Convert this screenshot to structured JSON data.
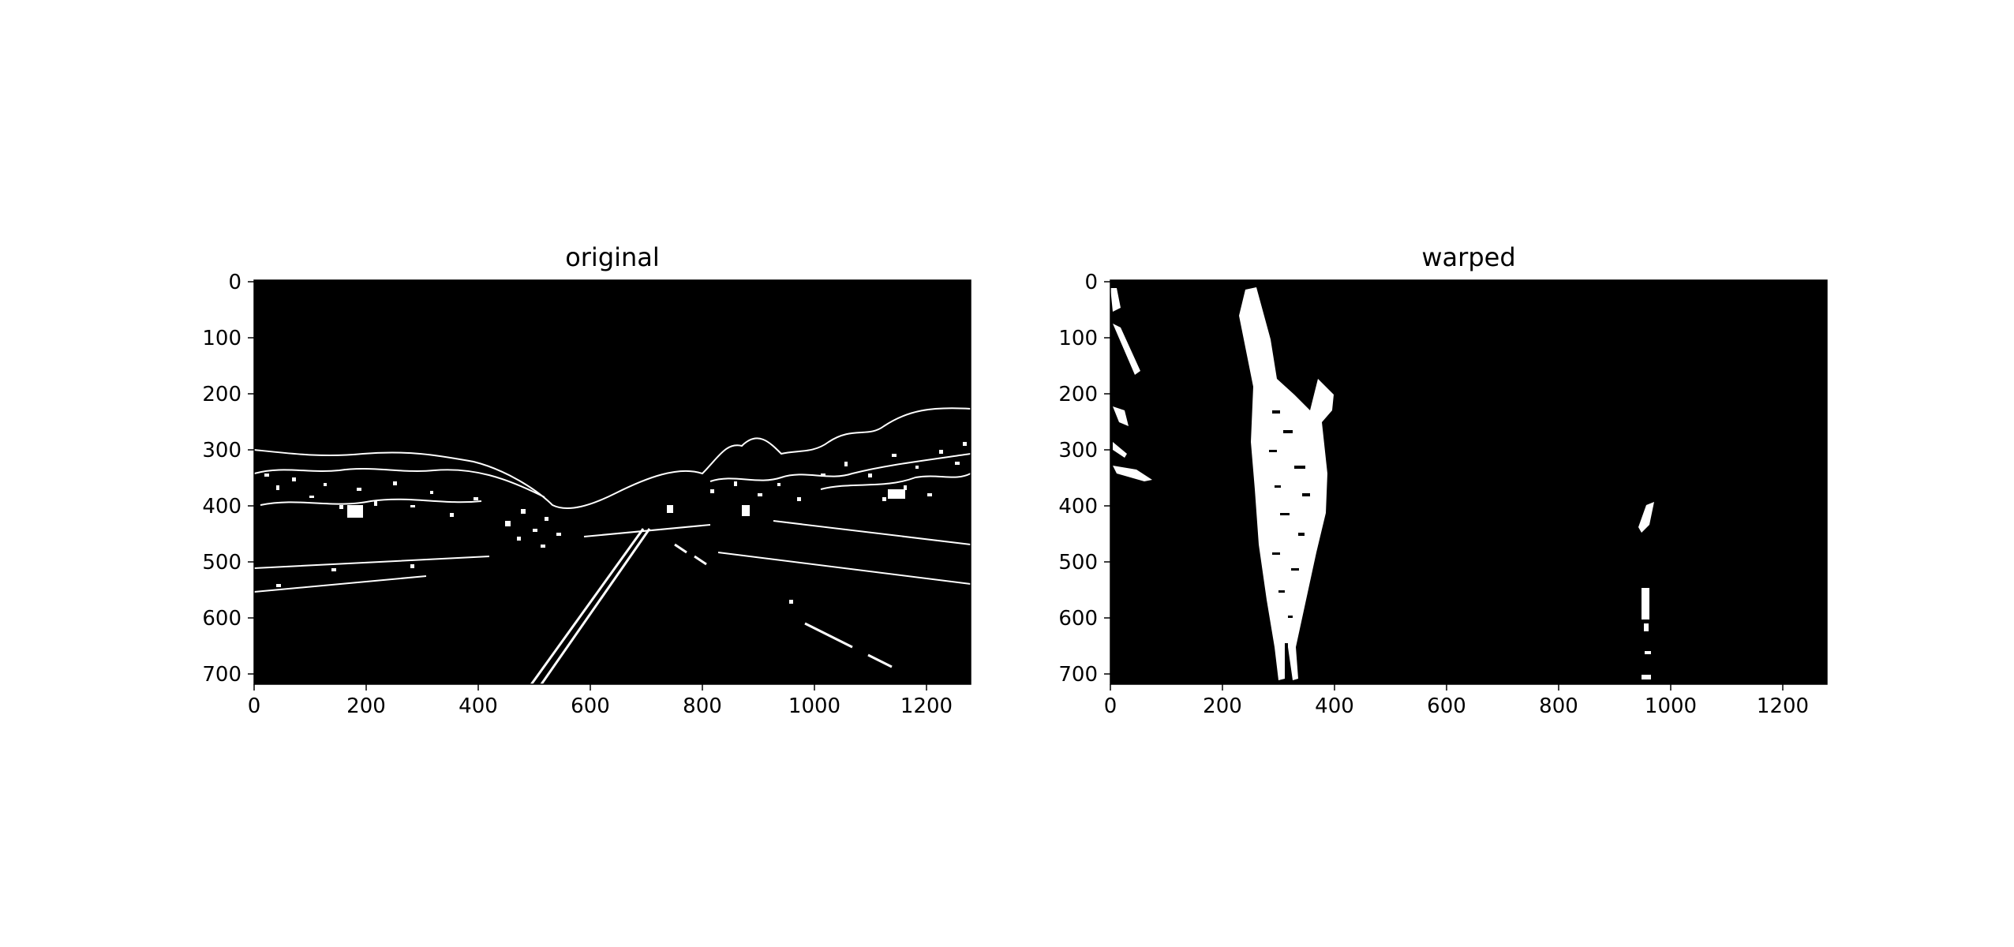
{
  "figure": {
    "panels": [
      {
        "title": "original",
        "image": "binary edge-detected road scene",
        "x_ticks": [
          "0",
          "200",
          "400",
          "600",
          "800",
          "1000",
          "1200"
        ],
        "y_ticks": [
          "0",
          "100",
          "200",
          "300",
          "400",
          "500",
          "600",
          "700"
        ],
        "xlim": [
          0,
          1280
        ],
        "ylim": [
          720,
          0
        ]
      },
      {
        "title": "warped",
        "image": "binary bird's-eye-view of lane lines",
        "x_ticks": [
          "0",
          "200",
          "400",
          "600",
          "800",
          "1000",
          "1200"
        ],
        "y_ticks": [
          "0",
          "100",
          "200",
          "300",
          "400",
          "500",
          "600",
          "700"
        ],
        "xlim": [
          0,
          1280
        ],
        "ylim": [
          720,
          0
        ]
      }
    ],
    "colors": {
      "background": "#ffffff",
      "image_bg": "#000000",
      "edge": "#ffffff"
    }
  }
}
